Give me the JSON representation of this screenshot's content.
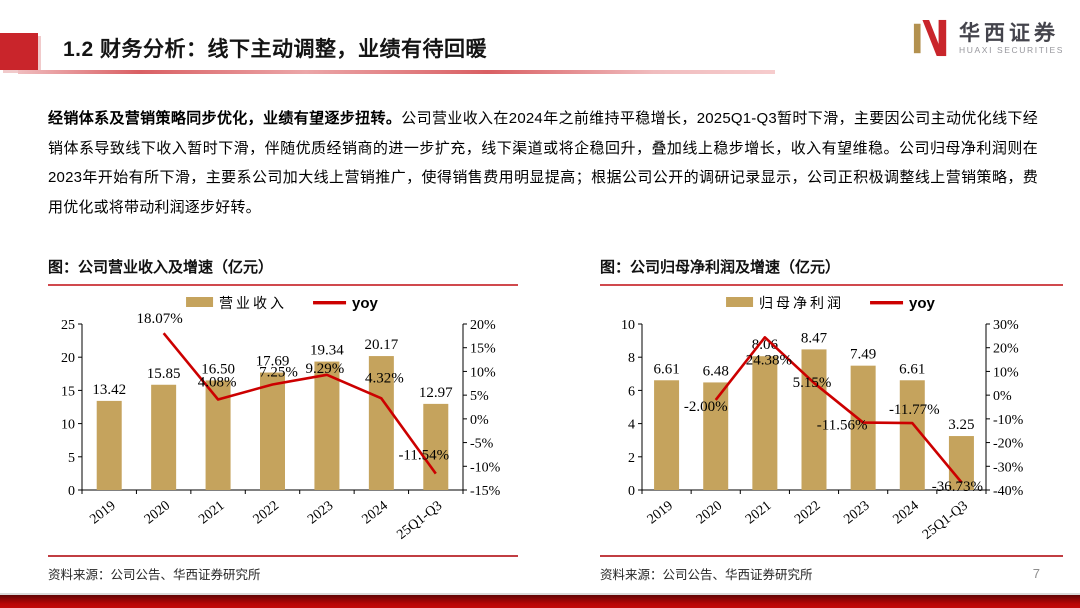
{
  "header": {
    "title": "1.2 财务分析：线下主动调整，业绩有待回暖",
    "logo": {
      "cn": "华西证券",
      "en": "HUAXI SECURITIES"
    }
  },
  "body": {
    "lead_bold": "经销体系及营销策略同步优化，业绩有望逐步扭转。",
    "text": "公司营业收入在2024年之前维持平稳增长，2025Q1-Q3暂时下滑，主要因公司主动优化线下经销体系导致线下收入暂时下滑，伴随优质经销商的进一步扩充，线下渠道或将企稳回升，叠加线上稳步增长，收入有望维稳。公司归母净利润则在2023年开始有所下滑，主要系公司加大线上营销推广，使得销售费用明显提高；根据公司公开的调研记录显示，公司正积极调整线上营销策略，费用优化或将带动利润逐步好转。"
  },
  "colors": {
    "bar": "#c5a35d",
    "line": "#cc0000",
    "accent_red": "#c9252b",
    "axis": "#000000"
  },
  "chart_data": [
    {
      "type": "bar",
      "title": "图：公司营业收入及增速（亿元）",
      "categories": [
        "2019",
        "2020",
        "2021",
        "2022",
        "2023",
        "2024",
        "25Q1-Q3"
      ],
      "series": [
        {
          "name": "营业收入",
          "type": "bar",
          "axis": "left",
          "values": [
            13.42,
            15.85,
            16.5,
            17.69,
            19.34,
            20.17,
            12.97
          ]
        },
        {
          "name": "yoy",
          "type": "line",
          "axis": "right",
          "values": [
            null,
            18.07,
            4.08,
            7.25,
            9.29,
            4.32,
            -11.54
          ]
        }
      ],
      "left_axis": {
        "min": 0,
        "max": 25,
        "step": 5,
        "suffix": ""
      },
      "right_axis": {
        "min": -15,
        "max": 20,
        "step": 5,
        "suffix": "%"
      },
      "legend_position": "top",
      "grid": false,
      "source": "资料来源：公司公告、华西证券研究所"
    },
    {
      "type": "bar",
      "title": "图：公司归母净利润及增速（亿元）",
      "categories": [
        "2019",
        "2020",
        "2021",
        "2022",
        "2023",
        "2024",
        "25Q1-Q3"
      ],
      "series": [
        {
          "name": "归母净利润",
          "type": "bar",
          "axis": "left",
          "values": [
            6.61,
            6.48,
            8.06,
            8.47,
            7.49,
            6.61,
            3.25
          ]
        },
        {
          "name": "yoy",
          "type": "line",
          "axis": "right",
          "values": [
            null,
            -2.0,
            24.38,
            5.15,
            -11.56,
            -11.77,
            -36.73
          ]
        }
      ],
      "left_axis": {
        "min": 0,
        "max": 10,
        "step": 2,
        "suffix": ""
      },
      "right_axis": {
        "min": -40,
        "max": 30,
        "step": 10,
        "suffix": "%"
      },
      "legend_position": "top",
      "grid": false,
      "source": "资料来源：公司公告、华西证券研究所"
    }
  ],
  "footer": {
    "page_number": "7"
  }
}
